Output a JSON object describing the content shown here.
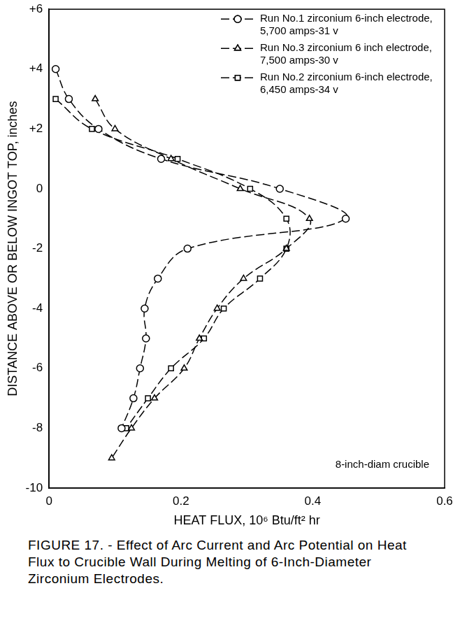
{
  "chart_data": {
    "type": "line",
    "title": "FIGURE 17. - Effect of Arc Current and Arc Potential on Heat Flux to Crucible Wall During Melting of 6-Inch-Diameter Zirconium Electrodes.",
    "x_label": "HEAT FLUX, 10⁶ Btu/ft² hr",
    "y_label": "DISTANCE ABOVE OR BELOW INGOT TOP, inches",
    "xlim": [
      0,
      0.6
    ],
    "xticks": [
      0,
      0.2,
      0.4,
      0.6
    ],
    "ylim": [
      -10,
      6
    ],
    "yticks": [
      -10,
      -8,
      -6,
      -4,
      -2,
      0,
      {
        "value": 2,
        "label": "+2"
      },
      {
        "value": 4,
        "label": "+4"
      },
      {
        "value": 6,
        "label": "+6"
      }
    ],
    "grid": false,
    "legend": "upper right",
    "annotations": [
      "8-inch-diam crucible"
    ],
    "series": [
      {
        "name": "Run No.1 zirconium 6-inch electrode, 5,700 amps-31 v",
        "color": "#000000",
        "marker": "circle",
        "line_style": "dashed",
        "x": [
          0.01,
          0.03,
          0.075,
          0.17,
          0.35,
          0.45,
          0.21,
          0.165,
          0.145,
          0.147,
          0.138,
          0.128,
          0.11
        ],
        "values": [
          4,
          3,
          2,
          1,
          0,
          -1,
          -2,
          -3,
          -4,
          -5,
          -6,
          -7,
          -8
        ]
      },
      {
        "name": "Run No.3 zirconium 6 inch electrode, 7,500 amps-30 v",
        "color": "#000000",
        "marker": "triangle",
        "line_style": "dashed",
        "x": [
          0.07,
          0.1,
          0.185,
          0.29,
          0.395,
          0.36,
          0.295,
          0.255,
          0.228,
          0.205,
          0.16,
          0.125,
          0.095
        ],
        "values": [
          3,
          2,
          1,
          0,
          -1,
          -2,
          -3,
          -4,
          -5,
          -6,
          -7,
          -8,
          -9
        ]
      },
      {
        "name": "Run No.2 zirconium 6-inch electrode, 6,450 amps-34 v",
        "color": "#000000",
        "marker": "square",
        "line_style": "dashed",
        "x": [
          0.01,
          0.065,
          0.195,
          0.305,
          0.36,
          0.36,
          0.32,
          0.265,
          0.235,
          0.185,
          0.15,
          0.117
        ],
        "values": [
          3,
          2,
          1,
          0,
          -1,
          -2,
          -3,
          -4,
          -5,
          -6,
          -7,
          -8
        ]
      }
    ]
  }
}
